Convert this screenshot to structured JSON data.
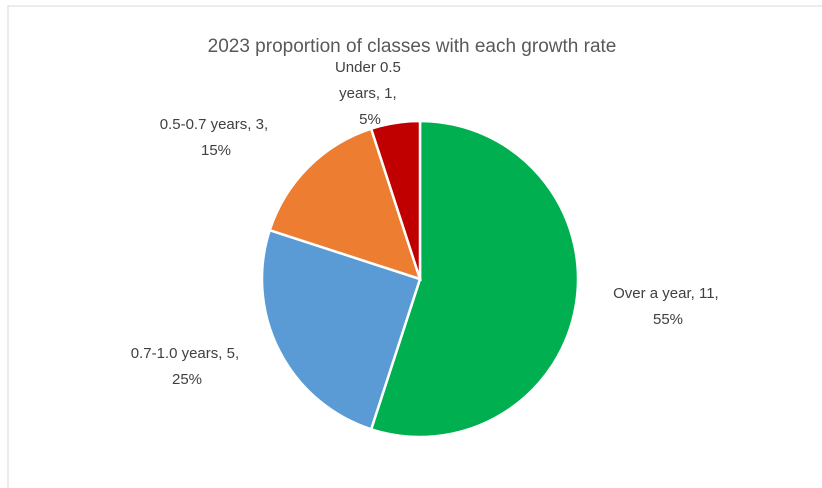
{
  "chart_data": {
    "type": "pie",
    "title": "2023 proportion of classes with each growth rate",
    "categories": [
      "Over a year",
      "0.7-1.0 years",
      "0.5-0.7 years",
      "Under 0.5"
    ],
    "values": [
      11,
      5,
      3,
      1
    ],
    "value_labels": [
      "Over a year, 11, 55%",
      "0.7-1.0 years, 5, 25%",
      "0.5-0.7 years, 3, 15%",
      "Under 0.5 years, 1, 5%"
    ],
    "colors": [
      "#00b050",
      "#5b9bd5",
      "#ed7d31",
      "#c00000"
    ]
  }
}
